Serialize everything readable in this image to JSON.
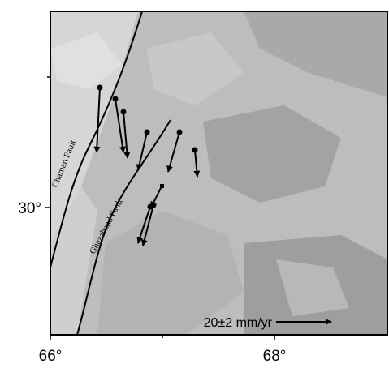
{
  "map": {
    "x_labels": [
      "66°",
      "68°"
    ],
    "y_labels": [
      "30°"
    ],
    "faults": [
      "Chaman Fault",
      "Ghazaband Fault"
    ],
    "scale_label": "20±2 mm/yr"
  }
}
